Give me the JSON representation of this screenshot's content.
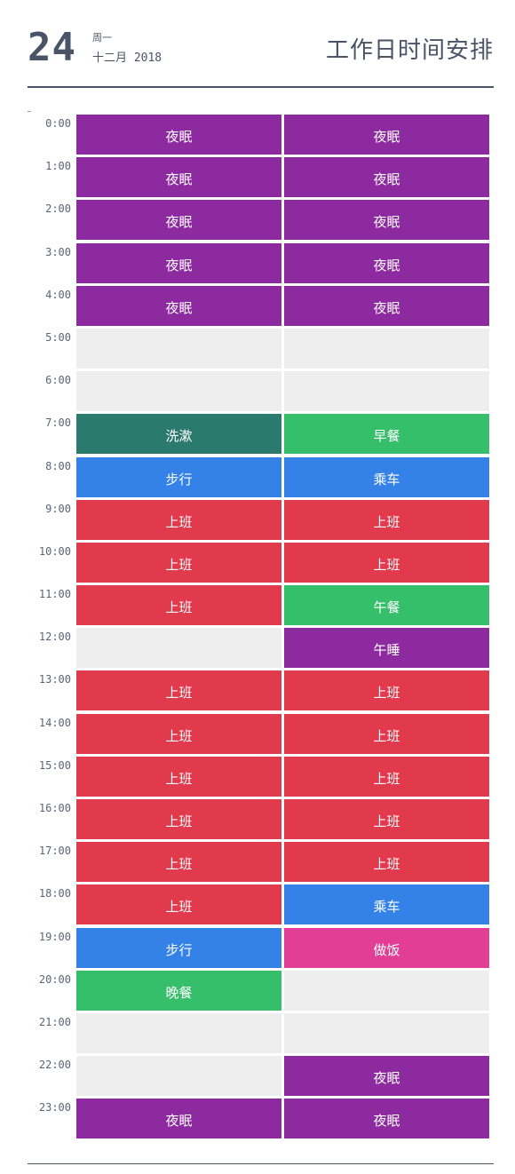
{
  "header": {
    "day": "24",
    "weekday": "周一",
    "month_year": "十二月 2018",
    "title": "工作日时间安排"
  },
  "colors": {
    "sleep": "#8e2aa0",
    "empty": "#eeeeee",
    "wash": "#2b7a6e",
    "meal": "#35bf6a",
    "walk": "#3482e8",
    "work": "#e13a4c",
    "cook": "#e23e96"
  },
  "schedule": [
    {
      "time": "0:00",
      "left": {
        "label": "夜眠",
        "kind": "sleep"
      },
      "right": {
        "label": "夜眠",
        "kind": "sleep"
      }
    },
    {
      "time": "1:00",
      "left": {
        "label": "夜眠",
        "kind": "sleep"
      },
      "right": {
        "label": "夜眠",
        "kind": "sleep"
      }
    },
    {
      "time": "2:00",
      "left": {
        "label": "夜眠",
        "kind": "sleep"
      },
      "right": {
        "label": "夜眠",
        "kind": "sleep"
      }
    },
    {
      "time": "3:00",
      "left": {
        "label": "夜眠",
        "kind": "sleep"
      },
      "right": {
        "label": "夜眠",
        "kind": "sleep"
      }
    },
    {
      "time": "4:00",
      "left": {
        "label": "夜眠",
        "kind": "sleep"
      },
      "right": {
        "label": "夜眠",
        "kind": "sleep"
      }
    },
    {
      "time": "5:00",
      "left": {
        "label": "",
        "kind": "empty"
      },
      "right": {
        "label": "",
        "kind": "empty"
      }
    },
    {
      "time": "6:00",
      "left": {
        "label": "",
        "kind": "empty"
      },
      "right": {
        "label": "",
        "kind": "empty"
      }
    },
    {
      "time": "7:00",
      "left": {
        "label": "洗漱",
        "kind": "wash"
      },
      "right": {
        "label": "早餐",
        "kind": "meal"
      }
    },
    {
      "time": "8:00",
      "left": {
        "label": "步行",
        "kind": "walk"
      },
      "right": {
        "label": "乘车",
        "kind": "walk"
      }
    },
    {
      "time": "9:00",
      "left": {
        "label": "上班",
        "kind": "work"
      },
      "right": {
        "label": "上班",
        "kind": "work"
      }
    },
    {
      "time": "10:00",
      "left": {
        "label": "上班",
        "kind": "work"
      },
      "right": {
        "label": "上班",
        "kind": "work"
      }
    },
    {
      "time": "11:00",
      "left": {
        "label": "上班",
        "kind": "work"
      },
      "right": {
        "label": "午餐",
        "kind": "meal"
      }
    },
    {
      "time": "12:00",
      "left": {
        "label": "",
        "kind": "empty"
      },
      "right": {
        "label": "午睡",
        "kind": "sleep"
      }
    },
    {
      "time": "13:00",
      "left": {
        "label": "上班",
        "kind": "work"
      },
      "right": {
        "label": "上班",
        "kind": "work"
      }
    },
    {
      "time": "14:00",
      "left": {
        "label": "上班",
        "kind": "work"
      },
      "right": {
        "label": "上班",
        "kind": "work"
      }
    },
    {
      "time": "15:00",
      "left": {
        "label": "上班",
        "kind": "work"
      },
      "right": {
        "label": "上班",
        "kind": "work"
      }
    },
    {
      "time": "16:00",
      "left": {
        "label": "上班",
        "kind": "work"
      },
      "right": {
        "label": "上班",
        "kind": "work"
      }
    },
    {
      "time": "17:00",
      "left": {
        "label": "上班",
        "kind": "work"
      },
      "right": {
        "label": "上班",
        "kind": "work"
      }
    },
    {
      "time": "18:00",
      "left": {
        "label": "上班",
        "kind": "work"
      },
      "right": {
        "label": "乘车",
        "kind": "walk"
      }
    },
    {
      "time": "19:00",
      "left": {
        "label": "步行",
        "kind": "walk"
      },
      "right": {
        "label": "做饭",
        "kind": "cook"
      }
    },
    {
      "time": "20:00",
      "left": {
        "label": "晚餐",
        "kind": "meal"
      },
      "right": {
        "label": "",
        "kind": "empty"
      }
    },
    {
      "time": "21:00",
      "left": {
        "label": "",
        "kind": "empty"
      },
      "right": {
        "label": "",
        "kind": "empty"
      }
    },
    {
      "time": "22:00",
      "left": {
        "label": "",
        "kind": "empty"
      },
      "right": {
        "label": "夜眠",
        "kind": "sleep"
      }
    },
    {
      "time": "23:00",
      "left": {
        "label": "夜眠",
        "kind": "sleep"
      },
      "right": {
        "label": "夜眠",
        "kind": "sleep"
      }
    }
  ]
}
